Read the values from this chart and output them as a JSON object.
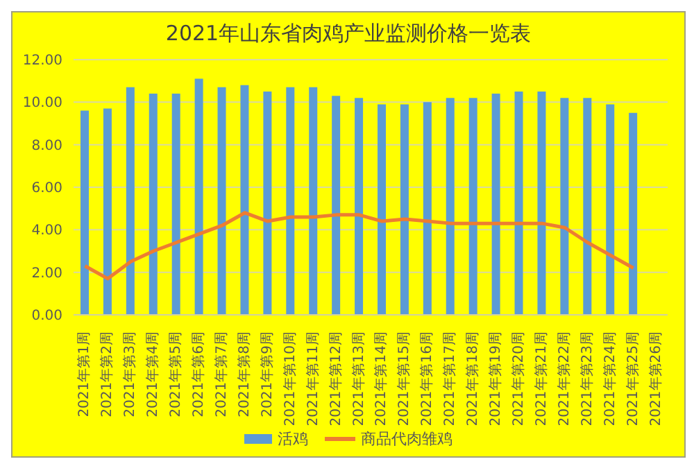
{
  "chart_data": {
    "type": "bar",
    "title": "2021年山东省肉鸡产业监测价格一览表",
    "categories": [
      "2021年第1周",
      "2021年第2周",
      "2021年第3周",
      "2021年第4周",
      "2021年第5周",
      "2021年第6周",
      "2021年第7周",
      "2021年第8周",
      "2021年第9周",
      "2021年第10周",
      "2021年第11周",
      "2021年第12周",
      "2021年第13周",
      "2021年第14周",
      "2021年第15周",
      "2021年第16周",
      "2021年第17周",
      "2021年第18周",
      "2021年第19周",
      "2021年第20周",
      "2021年第21周",
      "2021年第22周",
      "2021年第23周",
      "2021年第24周",
      "2021年第25周",
      "2021年第26周"
    ],
    "series": [
      {
        "name": "活鸡",
        "color": "#5b9bd5",
        "values": [
          9.6,
          9.7,
          10.7,
          10.4,
          10.4,
          11.1,
          10.7,
          10.8,
          10.5,
          10.7,
          10.7,
          10.3,
          10.2,
          9.9,
          9.9,
          10.0,
          10.2,
          10.2,
          10.4,
          10.5,
          10.5,
          10.2,
          10.2,
          9.9,
          9.5,
          null
        ]
      },
      {
        "name": "商品代肉雏鸡",
        "type": "line",
        "color": "#ed7d31",
        "values": [
          2.3,
          1.7,
          2.5,
          3.0,
          3.4,
          3.8,
          4.2,
          4.8,
          4.4,
          4.6,
          4.6,
          4.7,
          4.7,
          4.4,
          4.5,
          4.4,
          4.3,
          4.3,
          4.3,
          4.3,
          4.3,
          4.1,
          3.4,
          2.8,
          2.2,
          null
        ]
      }
    ],
    "ylim": [
      0,
      12
    ],
    "yticks": [
      {
        "value": 0,
        "label": "0.00"
      },
      {
        "value": 2,
        "label": "2.00"
      },
      {
        "value": 4,
        "label": "4.00"
      },
      {
        "value": 6,
        "label": "6.00"
      },
      {
        "value": 8,
        "label": "8.00"
      },
      {
        "value": 10,
        "label": "10.00"
      },
      {
        "value": 12,
        "label": "12.00"
      }
    ],
    "grid": "y",
    "legend": "bottom",
    "marker": "none"
  }
}
